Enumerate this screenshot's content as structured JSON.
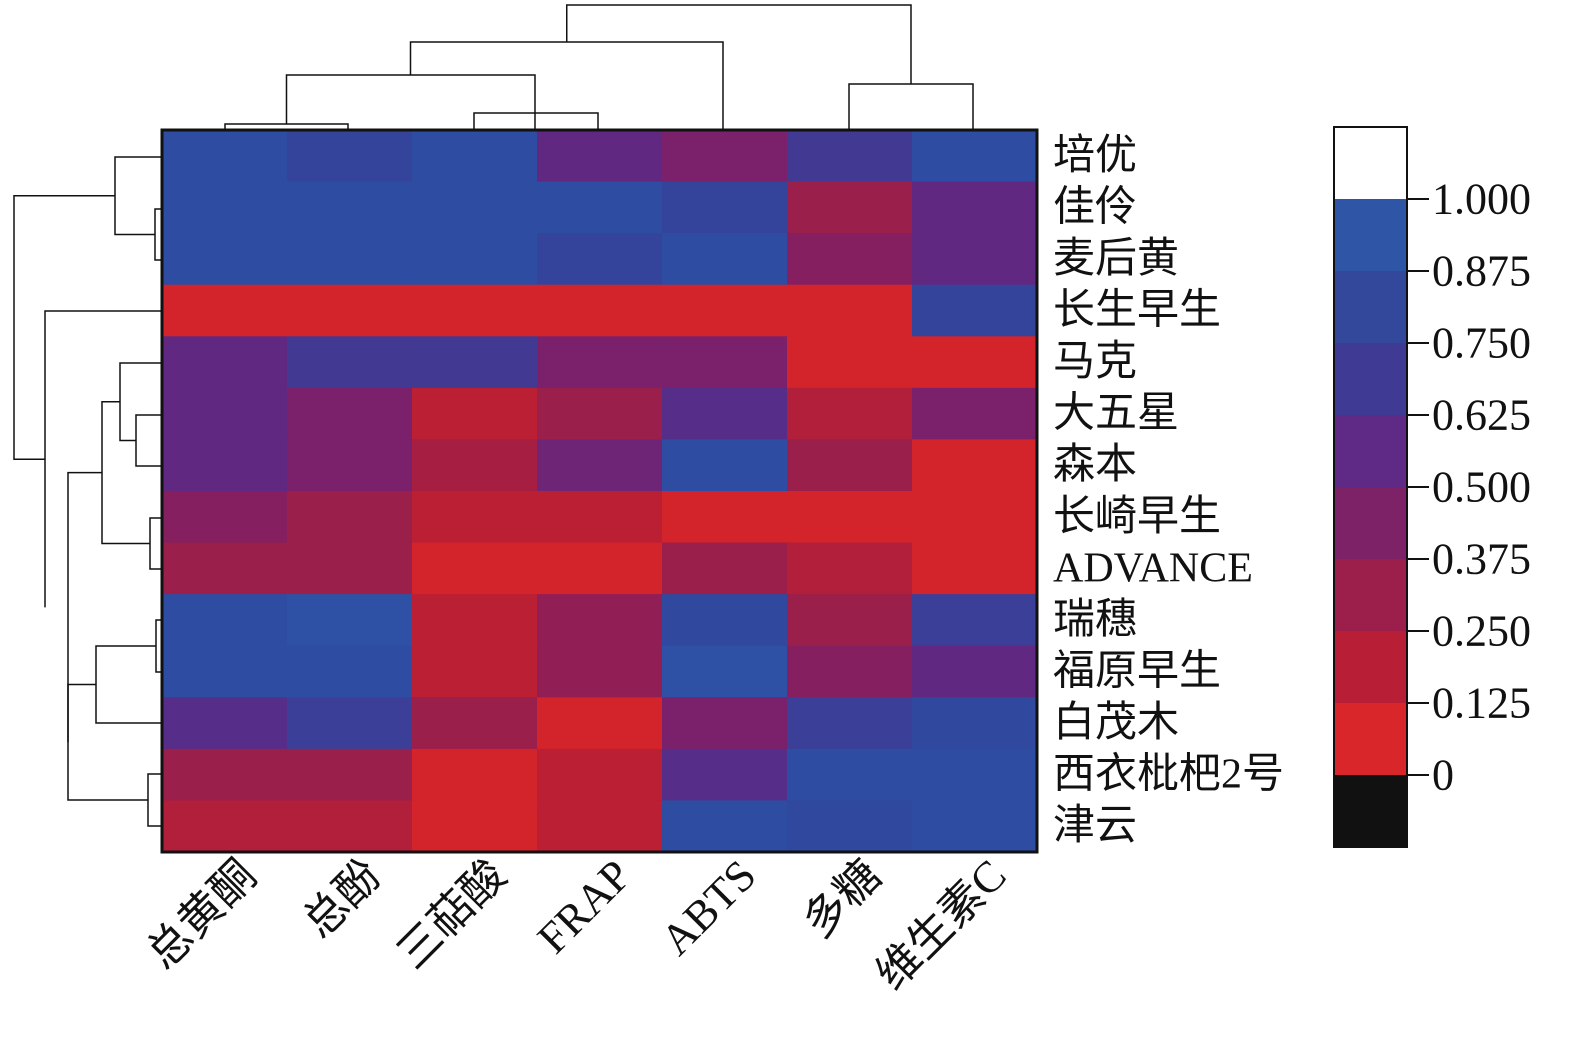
{
  "chart_data": {
    "type": "heatmap",
    "rows": [
      "培优",
      "佳伶",
      "麦后黄",
      "长生早生",
      "马克",
      "大五星",
      "森本",
      "长崎早生",
      "ADVANCE",
      "瑞穗",
      "福原早生",
      "白茂木",
      "西衣枇杷2号",
      "津云"
    ],
    "columns": [
      "总黄酮",
      "总酚",
      "三萜酸",
      "FRAP",
      "ABTS",
      "多糖",
      "维生素C"
    ],
    "values": [
      [
        0.9,
        0.8,
        0.9,
        0.55,
        0.45,
        0.7,
        0.9
      ],
      [
        0.9,
        0.9,
        0.9,
        0.9,
        0.8,
        0.3,
        0.55
      ],
      [
        0.9,
        0.9,
        0.9,
        0.8,
        0.9,
        0.4,
        0.55
      ],
      [
        0.05,
        0.05,
        0.05,
        0.05,
        0.05,
        0.05,
        0.8
      ],
      [
        0.55,
        0.7,
        0.7,
        0.45,
        0.45,
        0.05,
        0.05
      ],
      [
        0.55,
        0.45,
        0.15,
        0.3,
        0.6,
        0.2,
        0.45
      ],
      [
        0.55,
        0.45,
        0.25,
        0.5,
        0.9,
        0.3,
        0.05
      ],
      [
        0.4,
        0.3,
        0.15,
        0.15,
        0.05,
        0.05,
        0.05
      ],
      [
        0.3,
        0.3,
        0.05,
        0.05,
        0.3,
        0.2,
        0.05
      ],
      [
        0.9,
        0.95,
        0.15,
        0.35,
        0.85,
        0.3,
        0.75
      ],
      [
        0.9,
        0.9,
        0.15,
        0.35,
        0.95,
        0.4,
        0.55
      ],
      [
        0.6,
        0.75,
        0.3,
        0.05,
        0.45,
        0.75,
        0.85
      ],
      [
        0.3,
        0.3,
        0.05,
        0.15,
        0.6,
        0.9,
        0.9
      ],
      [
        0.2,
        0.2,
        0.05,
        0.15,
        0.9,
        0.85,
        0.9
      ]
    ],
    "colorbar": {
      "ticks": [
        "1.000",
        "0.875",
        "0.750",
        "0.625",
        "0.500",
        "0.375",
        "0.250",
        "0.125",
        "0"
      ],
      "band_colors": [
        "#ffffff",
        "#2e55a6",
        "#33479b",
        "#3f3a93",
        "#5e2a86",
        "#7e2268",
        "#9b1f4a",
        "#b81e35",
        "#d9262a",
        "#111111"
      ]
    },
    "color_stops": [
      "#df2526",
      "#bd1f33",
      "#9e1f48",
      "#801f66",
      "#5c2a86",
      "#3f3b94",
      "#2f4aa0",
      "#2d54a8"
    ]
  }
}
